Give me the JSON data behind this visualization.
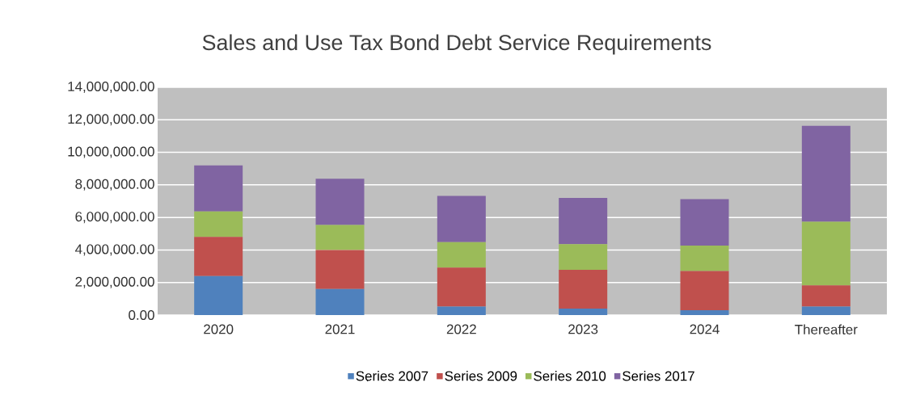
{
  "chart_data": {
    "type": "bar",
    "title": "Sales and Use Tax Bond Debt Service Requirements",
    "categories": [
      "2020",
      "2021",
      "2022",
      "2023",
      "2024",
      "Thereafter"
    ],
    "stacked": true,
    "series": [
      {
        "name": "Series 2007",
        "color": "#4f81bd",
        "values": [
          2400000,
          1600000,
          520000,
          400000,
          300000,
          520000
        ]
      },
      {
        "name": "Series 2009",
        "color": "#c0504d",
        "values": [
          2400000,
          2400000,
          2400000,
          2380000,
          2400000,
          1300000
        ]
      },
      {
        "name": "Series 2010",
        "color": "#9bbb59",
        "values": [
          1570000,
          1530000,
          1560000,
          1570000,
          1570000,
          3910000
        ]
      },
      {
        "name": "Series 2017",
        "color": "#8064a2",
        "values": [
          2830000,
          2850000,
          2840000,
          2850000,
          2850000,
          5900000
        ]
      }
    ],
    "ylim": [
      0,
      14000000
    ],
    "yticks": [
      {
        "value": 0,
        "label": "0.00"
      },
      {
        "value": 2000000,
        "label": "2,000,000.00"
      },
      {
        "value": 4000000,
        "label": "4,000,000.00"
      },
      {
        "value": 6000000,
        "label": "6,000,000.00"
      },
      {
        "value": 8000000,
        "label": "8,000,000.00"
      },
      {
        "value": 10000000,
        "label": "10,000,000.00"
      },
      {
        "value": 12000000,
        "label": "12,000,000.00"
      },
      {
        "value": 14000000,
        "label": "14,000,000.00"
      }
    ],
    "grid": "y",
    "legend": "bottom"
  }
}
